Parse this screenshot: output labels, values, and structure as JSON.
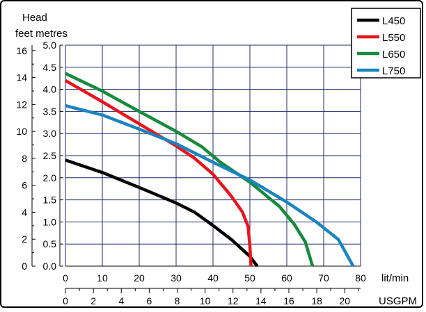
{
  "chart_data": {
    "type": "line",
    "title": "",
    "left_axis_title": "Head",
    "left_axis_units": "feet metres",
    "x_primary": {
      "label": "lit/min",
      "range": [
        0,
        80
      ],
      "ticks": [
        "0",
        "10",
        "20",
        "30",
        "40",
        "50",
        "60",
        "70",
        "80"
      ]
    },
    "x_secondary": {
      "label": "USGPM",
      "range": [
        0,
        21.13
      ],
      "ticks": [
        "0",
        "2",
        "4",
        "6",
        "8",
        "10",
        "12",
        "14",
        "16",
        "18",
        "20"
      ]
    },
    "y_metres": {
      "label": "metres",
      "range": [
        0,
        5
      ],
      "ticks": [
        "0.0",
        "0.5",
        "1.0",
        "1.5",
        "2.0",
        "2.5",
        "3.0",
        "3.5",
        "4.0",
        "4.5",
        "5.0"
      ]
    },
    "y_feet": {
      "label": "feet",
      "range": [
        0,
        16.4
      ],
      "ticks": [
        "0",
        "2",
        "4",
        "6",
        "8",
        "10",
        "12",
        "14",
        "16"
      ]
    },
    "grid": true,
    "legend_position": "top-right",
    "series": [
      {
        "name": "L450",
        "color": "#000000",
        "points": [
          [
            0,
            2.4
          ],
          [
            10,
            2.12
          ],
          [
            20,
            1.78
          ],
          [
            30,
            1.43
          ],
          [
            35,
            1.22
          ],
          [
            40,
            0.92
          ],
          [
            45,
            0.6
          ],
          [
            50,
            0.22
          ],
          [
            52,
            0.0
          ]
        ]
      },
      {
        "name": "L550",
        "color": "#e8151c",
        "points": [
          [
            0,
            4.2
          ],
          [
            10,
            3.72
          ],
          [
            20,
            3.22
          ],
          [
            30,
            2.72
          ],
          [
            35,
            2.44
          ],
          [
            40,
            2.08
          ],
          [
            45,
            1.58
          ],
          [
            48,
            1.22
          ],
          [
            49.5,
            0.9
          ],
          [
            50,
            0.45
          ],
          [
            50.3,
            0.0
          ]
        ]
      },
      {
        "name": "L650",
        "color": "#178a3c",
        "points": [
          [
            0,
            4.36
          ],
          [
            10,
            3.96
          ],
          [
            20,
            3.5
          ],
          [
            30,
            3.05
          ],
          [
            37,
            2.7
          ],
          [
            42,
            2.35
          ],
          [
            50,
            1.9
          ],
          [
            58,
            1.35
          ],
          [
            62,
            0.95
          ],
          [
            65,
            0.55
          ],
          [
            67,
            0.0
          ]
        ]
      },
      {
        "name": "L750",
        "color": "#1a84c0",
        "points": [
          [
            0,
            3.63
          ],
          [
            10,
            3.42
          ],
          [
            20,
            3.1
          ],
          [
            30,
            2.77
          ],
          [
            40,
            2.35
          ],
          [
            50,
            1.95
          ],
          [
            60,
            1.45
          ],
          [
            68,
            1.0
          ],
          [
            74,
            0.6
          ],
          [
            78,
            0.0
          ]
        ]
      }
    ]
  }
}
